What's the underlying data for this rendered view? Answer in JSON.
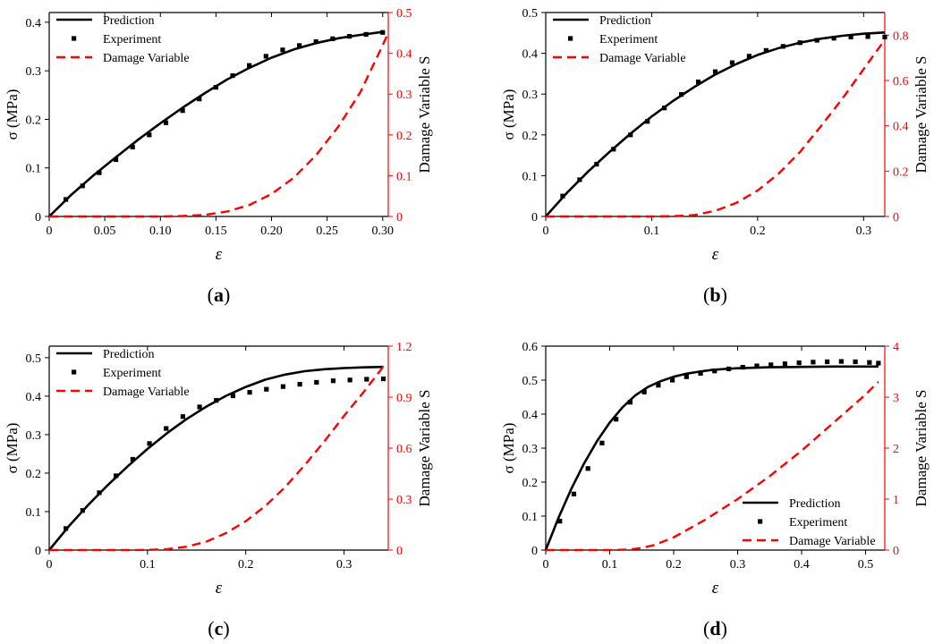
{
  "legend_labels": {
    "prediction": "Prediction",
    "experiment": "Experiment",
    "damage": "Damage Variable"
  },
  "axis_labels": {
    "y_left": "σ (MPa)",
    "y_right": "Damage Variable  S",
    "x": "ε"
  },
  "colors": {
    "prediction": "#000000",
    "experiment": "#000000",
    "damage": "#ff0000",
    "right_axis": "#ff0000"
  },
  "chart_data": [
    {
      "type": "line",
      "panel_label": "a",
      "xlabel": "ε",
      "ylabel": "σ (MPa)",
      "y2label": "Damage Variable  S",
      "xlim": [
        0,
        0.305
      ],
      "ylim": [
        0,
        0.42
      ],
      "y2lim": [
        0,
        0.5
      ],
      "x_ticks": [
        "0",
        "0.05",
        "0.10",
        "0.15",
        "0.20",
        "0.25",
        "0.30"
      ],
      "x_tick_values": [
        0,
        0.05,
        0.1,
        0.15,
        0.2,
        0.25,
        0.3
      ],
      "y_ticks": [
        "0",
        "0.1",
        "0.2",
        "0.3",
        "0.4"
      ],
      "y_tick_values": [
        0,
        0.1,
        0.2,
        0.3,
        0.4
      ],
      "y2_ticks": [
        "0",
        "0.1",
        "0.2",
        "0.3",
        "0.4",
        "0.5"
      ],
      "y2_tick_values": [
        0,
        0.1,
        0.2,
        0.3,
        0.4,
        0.5
      ],
      "legend_position": "top-left",
      "series": [
        {
          "name": "Prediction",
          "axis": "left",
          "style": "solid",
          "x": [
            0,
            0.02,
            0.04,
            0.06,
            0.08,
            0.1,
            0.12,
            0.14,
            0.16,
            0.18,
            0.2,
            0.22,
            0.24,
            0.26,
            0.28,
            0.3
          ],
          "y": [
            0,
            0.045,
            0.085,
            0.122,
            0.158,
            0.192,
            0.224,
            0.254,
            0.282,
            0.306,
            0.327,
            0.344,
            0.357,
            0.367,
            0.374,
            0.38
          ]
        },
        {
          "name": "Experiment",
          "axis": "left",
          "style": "markers",
          "x": [
            0.015,
            0.03,
            0.045,
            0.06,
            0.075,
            0.09,
            0.105,
            0.12,
            0.135,
            0.15,
            0.165,
            0.18,
            0.195,
            0.21,
            0.225,
            0.24,
            0.255,
            0.27,
            0.285,
            0.3
          ],
          "y": [
            0.035,
            0.063,
            0.09,
            0.117,
            0.143,
            0.168,
            0.193,
            0.218,
            0.242,
            0.266,
            0.29,
            0.311,
            0.33,
            0.343,
            0.352,
            0.36,
            0.366,
            0.371,
            0.375,
            0.379
          ]
        },
        {
          "name": "Damage Variable",
          "axis": "right",
          "style": "dashed",
          "x": [
            0,
            0.02,
            0.04,
            0.06,
            0.08,
            0.1,
            0.12,
            0.14,
            0.16,
            0.18,
            0.2,
            0.22,
            0.24,
            0.26,
            0.28,
            0.3,
            0.305
          ],
          "y": [
            0,
            0,
            0,
            0,
            0,
            0,
            0.001,
            0.004,
            0.012,
            0.028,
            0.055,
            0.095,
            0.15,
            0.22,
            0.305,
            0.42,
            0.45
          ]
        }
      ]
    },
    {
      "type": "line",
      "panel_label": "b",
      "xlabel": "ε",
      "ylabel": "σ (MPa)",
      "y2label": "Damage Variable  S",
      "xlim": [
        0,
        0.32
      ],
      "ylim": [
        0,
        0.5
      ],
      "y2lim": [
        0,
        0.9
      ],
      "x_ticks": [
        "0",
        "0.1",
        "0.2",
        "0.3"
      ],
      "x_tick_values": [
        0,
        0.1,
        0.2,
        0.3
      ],
      "y_ticks": [
        "0",
        "0.1",
        "0.2",
        "0.3",
        "0.4",
        "0.5"
      ],
      "y_tick_values": [
        0,
        0.1,
        0.2,
        0.3,
        0.4,
        0.5
      ],
      "y2_ticks": [
        "0",
        "0.2",
        "0.4",
        "0.6",
        "0.8"
      ],
      "y2_tick_values": [
        0,
        0.2,
        0.4,
        0.6,
        0.8
      ],
      "legend_position": "top-left",
      "series": [
        {
          "name": "Prediction",
          "axis": "left",
          "style": "solid",
          "x": [
            0,
            0.02,
            0.04,
            0.06,
            0.08,
            0.1,
            0.12,
            0.14,
            0.16,
            0.18,
            0.2,
            0.22,
            0.24,
            0.26,
            0.28,
            0.3,
            0.32
          ],
          "y": [
            0,
            0.058,
            0.11,
            0.158,
            0.203,
            0.245,
            0.283,
            0.317,
            0.348,
            0.374,
            0.396,
            0.413,
            0.426,
            0.436,
            0.443,
            0.448,
            0.451
          ]
        },
        {
          "name": "Experiment",
          "axis": "left",
          "style": "markers",
          "x": [
            0.016,
            0.032,
            0.048,
            0.064,
            0.08,
            0.096,
            0.112,
            0.128,
            0.144,
            0.16,
            0.176,
            0.192,
            0.208,
            0.224,
            0.24,
            0.256,
            0.272,
            0.288,
            0.304,
            0.32
          ],
          "y": [
            0.05,
            0.09,
            0.128,
            0.165,
            0.2,
            0.233,
            0.266,
            0.299,
            0.33,
            0.355,
            0.377,
            0.393,
            0.407,
            0.417,
            0.426,
            0.432,
            0.437,
            0.44,
            0.441,
            0.44
          ]
        },
        {
          "name": "Damage Variable",
          "axis": "right",
          "style": "dashed",
          "x": [
            0,
            0.04,
            0.08,
            0.1,
            0.12,
            0.14,
            0.16,
            0.18,
            0.2,
            0.22,
            0.24,
            0.26,
            0.28,
            0.3,
            0.32
          ],
          "y": [
            0,
            0,
            0,
            0,
            0.001,
            0.006,
            0.025,
            0.06,
            0.115,
            0.19,
            0.285,
            0.4,
            0.52,
            0.65,
            0.78
          ]
        }
      ]
    },
    {
      "type": "line",
      "panel_label": "c",
      "xlabel": "ε",
      "ylabel": "σ (MPa)",
      "y2label": "Damage Variable  S",
      "xlim": [
        0,
        0.345
      ],
      "ylim": [
        0,
        0.53
      ],
      "y2lim": [
        0,
        1.2
      ],
      "x_ticks": [
        "0",
        "0.1",
        "0.2",
        "0.3"
      ],
      "x_tick_values": [
        0,
        0.1,
        0.2,
        0.3
      ],
      "y_ticks": [
        "0",
        "0.1",
        "0.2",
        "0.3",
        "0.4",
        "0.5"
      ],
      "y_tick_values": [
        0,
        0.1,
        0.2,
        0.3,
        0.4,
        0.5
      ],
      "y2_ticks": [
        "0",
        "0.3",
        "0.6",
        "0.9",
        "1.2"
      ],
      "y2_tick_values": [
        0,
        0.3,
        0.6,
        0.9,
        1.2
      ],
      "legend_position": "top-left",
      "series": [
        {
          "name": "Prediction",
          "axis": "left",
          "style": "solid",
          "x": [
            0,
            0.02,
            0.04,
            0.06,
            0.08,
            0.1,
            0.12,
            0.14,
            0.16,
            0.18,
            0.2,
            0.22,
            0.24,
            0.26,
            0.28,
            0.3,
            0.32,
            0.34
          ],
          "y": [
            0,
            0.062,
            0.118,
            0.17,
            0.218,
            0.263,
            0.304,
            0.341,
            0.373,
            0.401,
            0.424,
            0.443,
            0.456,
            0.465,
            0.47,
            0.473,
            0.475,
            0.476
          ]
        },
        {
          "name": "Experiment",
          "axis": "left",
          "style": "markers",
          "x": [
            0.017,
            0.034,
            0.051,
            0.068,
            0.085,
            0.102,
            0.119,
            0.136,
            0.153,
            0.17,
            0.187,
            0.204,
            0.221,
            0.238,
            0.255,
            0.272,
            0.289,
            0.306,
            0.323,
            0.34
          ],
          "y": [
            0.056,
            0.103,
            0.149,
            0.193,
            0.236,
            0.277,
            0.316,
            0.347,
            0.372,
            0.389,
            0.401,
            0.41,
            0.418,
            0.425,
            0.431,
            0.436,
            0.44,
            0.442,
            0.444,
            0.445
          ]
        },
        {
          "name": "Damage Variable",
          "axis": "right",
          "style": "dashed",
          "x": [
            0,
            0.04,
            0.08,
            0.1,
            0.12,
            0.14,
            0.16,
            0.18,
            0.2,
            0.22,
            0.24,
            0.26,
            0.28,
            0.3,
            0.32,
            0.34
          ],
          "y": [
            0,
            0,
            0,
            0.001,
            0.006,
            0.02,
            0.05,
            0.1,
            0.17,
            0.26,
            0.37,
            0.5,
            0.64,
            0.79,
            0.93,
            1.08
          ]
        }
      ]
    },
    {
      "type": "line",
      "panel_label": "d",
      "xlabel": "ε",
      "ylabel": "σ (MPa)",
      "y2label": "Damage Variable  S",
      "xlim": [
        0,
        0.53
      ],
      "ylim": [
        0,
        0.6
      ],
      "y2lim": [
        0,
        4
      ],
      "x_ticks": [
        "0",
        "0.1",
        "0.2",
        "0.3",
        "0.4",
        "0.5"
      ],
      "x_tick_values": [
        0,
        0.1,
        0.2,
        0.3,
        0.4,
        0.5
      ],
      "y_ticks": [
        "0",
        "0.1",
        "0.2",
        "0.3",
        "0.4",
        "0.5",
        "0.6"
      ],
      "y_tick_values": [
        0,
        0.1,
        0.2,
        0.3,
        0.4,
        0.5,
        0.6
      ],
      "y2_ticks": [
        "0",
        "1",
        "2",
        "3",
        "4"
      ],
      "y2_tick_values": [
        0,
        1,
        2,
        3,
        4
      ],
      "legend_position": "bottom-right",
      "series": [
        {
          "name": "Prediction",
          "axis": "left",
          "style": "solid",
          "x": [
            0,
            0.02,
            0.04,
            0.06,
            0.08,
            0.1,
            0.12,
            0.14,
            0.16,
            0.18,
            0.2,
            0.22,
            0.24,
            0.26,
            0.28,
            0.3,
            0.35,
            0.4,
            0.45,
            0.5,
            0.52
          ],
          "y": [
            0,
            0.095,
            0.18,
            0.255,
            0.32,
            0.375,
            0.42,
            0.455,
            0.48,
            0.497,
            0.51,
            0.519,
            0.525,
            0.53,
            0.533,
            0.535,
            0.538,
            0.539,
            0.54,
            0.54,
            0.54
          ]
        },
        {
          "name": "Experiment",
          "axis": "left",
          "style": "markers",
          "x": [
            0.022,
            0.044,
            0.066,
            0.088,
            0.11,
            0.132,
            0.154,
            0.176,
            0.198,
            0.22,
            0.242,
            0.264,
            0.286,
            0.308,
            0.33,
            0.352,
            0.374,
            0.396,
            0.418,
            0.44,
            0.462,
            0.484,
            0.506,
            0.52
          ],
          "y": [
            0.085,
            0.165,
            0.24,
            0.315,
            0.385,
            0.435,
            0.465,
            0.485,
            0.5,
            0.51,
            0.52,
            0.527,
            0.533,
            0.538,
            0.542,
            0.545,
            0.548,
            0.551,
            0.553,
            0.554,
            0.555,
            0.554,
            0.552,
            0.55
          ]
        },
        {
          "name": "Damage Variable",
          "axis": "right",
          "style": "dashed",
          "x": [
            0,
            0.05,
            0.1,
            0.13,
            0.15,
            0.17,
            0.2,
            0.25,
            0.3,
            0.35,
            0.4,
            0.45,
            0.5,
            0.52
          ],
          "y": [
            0,
            0,
            0,
            0.01,
            0.04,
            0.1,
            0.25,
            0.6,
            1.0,
            1.45,
            1.95,
            2.5,
            3.05,
            3.3
          ]
        }
      ]
    }
  ]
}
